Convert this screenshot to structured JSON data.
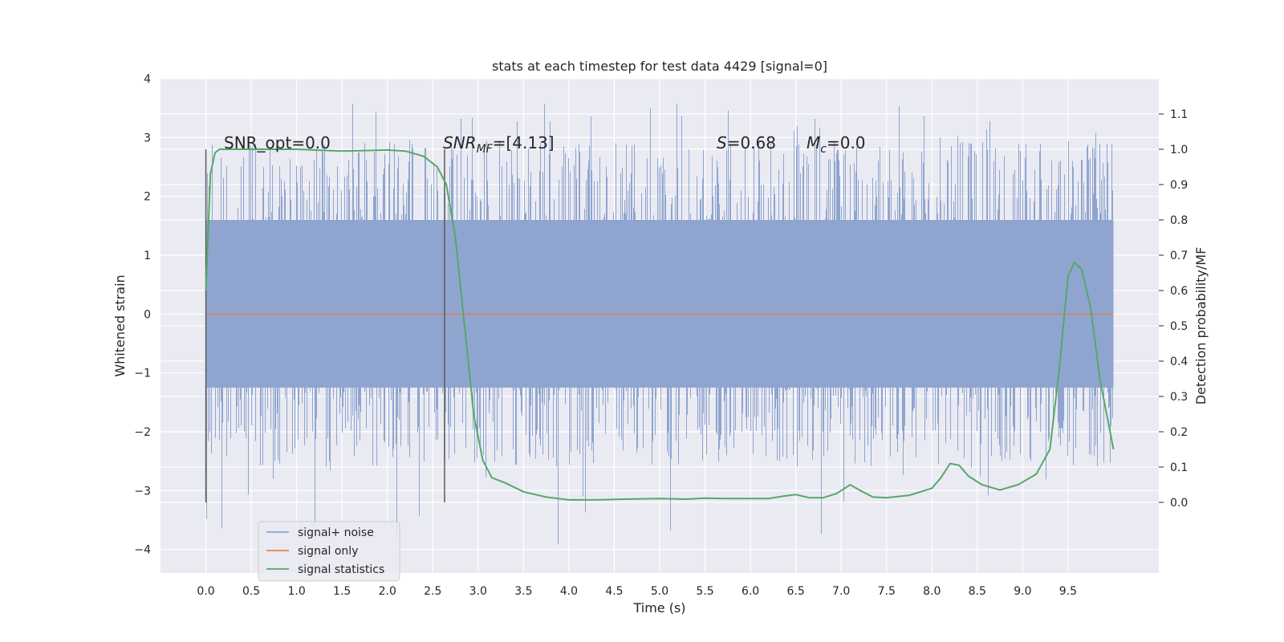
{
  "chart_data": {
    "type": "line",
    "title": "stats at each timestep for test data 4429 [signal=0]",
    "xlabel": "Time (s)",
    "ylabel_left": "Whitened strain",
    "ylabel_right": "Detection probability/MF",
    "xlim": [
      -0.5,
      10.5
    ],
    "ylim_left": [
      -4.4,
      4.0
    ],
    "ylim_right": [
      -0.2,
      1.2
    ],
    "x_ticks": [
      "0.0",
      "0.5",
      "1.0",
      "1.5",
      "2.0",
      "2.5",
      "3.0",
      "3.5",
      "4.0",
      "4.5",
      "5.0",
      "5.5",
      "6.0",
      "6.5",
      "7.0",
      "7.5",
      "8.0",
      "8.5",
      "9.0",
      "9.5"
    ],
    "y_left_ticks": [
      "4",
      "3",
      "2",
      "1",
      "0",
      "−1",
      "−2",
      "−3",
      "−4"
    ],
    "y_right_ticks": [
      "1.1",
      "1.0",
      "0.9",
      "0.8",
      "0.7",
      "0.6",
      "0.5",
      "0.4",
      "0.3",
      "0.2",
      "0.1",
      "0.0"
    ],
    "grid": true,
    "background_color": "#eaeaf2",
    "annotations": {
      "snr_opt": "SNR_opt=0.0",
      "snr_mf_main": "SNR",
      "snr_mf_sub": "MF",
      "snr_mf_value": "=[4.13]",
      "s_main": "S",
      "s_value": "=0.68",
      "mc_main": "M",
      "mc_sub": "c",
      "mc_value": "=0.0"
    },
    "vlines": [
      0.0,
      2.63
    ],
    "vline_range": [
      -3.2,
      2.8
    ],
    "series": [
      {
        "name": "signal+ noise",
        "axis": "left",
        "color": "#8fa5cf",
        "x_range": [
          0.0,
          10.0
        ],
        "envelope_core": [
          -1.25,
          1.6
        ],
        "envelope_peak": [
          -4.0,
          3.6
        ]
      },
      {
        "name": "signal only",
        "axis": "left",
        "color": "#dd8452",
        "x": [
          0.0,
          10.0
        ],
        "y": [
          0.0,
          0.0
        ]
      },
      {
        "name": "signal statistics",
        "axis": "right",
        "color": "#55a868",
        "x": [
          0.0,
          0.05,
          0.1,
          0.15,
          0.25,
          0.5,
          1.0,
          1.5,
          2.0,
          2.2,
          2.4,
          2.55,
          2.65,
          2.75,
          2.85,
          2.95,
          3.05,
          3.15,
          3.3,
          3.5,
          3.75,
          4.0,
          4.3,
          4.6,
          5.0,
          5.3,
          5.5,
          5.7,
          5.9,
          6.2,
          6.35,
          6.5,
          6.65,
          6.8,
          6.95,
          7.1,
          7.2,
          7.35,
          7.5,
          7.75,
          8.0,
          8.1,
          8.2,
          8.3,
          8.4,
          8.55,
          8.75,
          8.95,
          9.15,
          9.3,
          9.4,
          9.5,
          9.57,
          9.65,
          9.75,
          9.85,
          10.0
        ],
        "y": [
          0.6,
          0.93,
          0.99,
          1.0,
          1.0,
          1.0,
          1.0,
          0.995,
          0.998,
          0.995,
          0.98,
          0.95,
          0.9,
          0.75,
          0.5,
          0.25,
          0.12,
          0.07,
          0.055,
          0.03,
          0.015,
          0.007,
          0.007,
          0.009,
          0.011,
          0.009,
          0.012,
          0.011,
          0.011,
          0.011,
          0.017,
          0.022,
          0.013,
          0.013,
          0.025,
          0.05,
          0.035,
          0.015,
          0.013,
          0.02,
          0.04,
          0.07,
          0.11,
          0.105,
          0.075,
          0.05,
          0.035,
          0.05,
          0.08,
          0.15,
          0.37,
          0.64,
          0.68,
          0.66,
          0.55,
          0.35,
          0.15
        ]
      }
    ],
    "legend": {
      "placement": "lower-left",
      "entries": [
        "signal+ noise",
        "signal only",
        "signal statistics"
      ]
    }
  }
}
